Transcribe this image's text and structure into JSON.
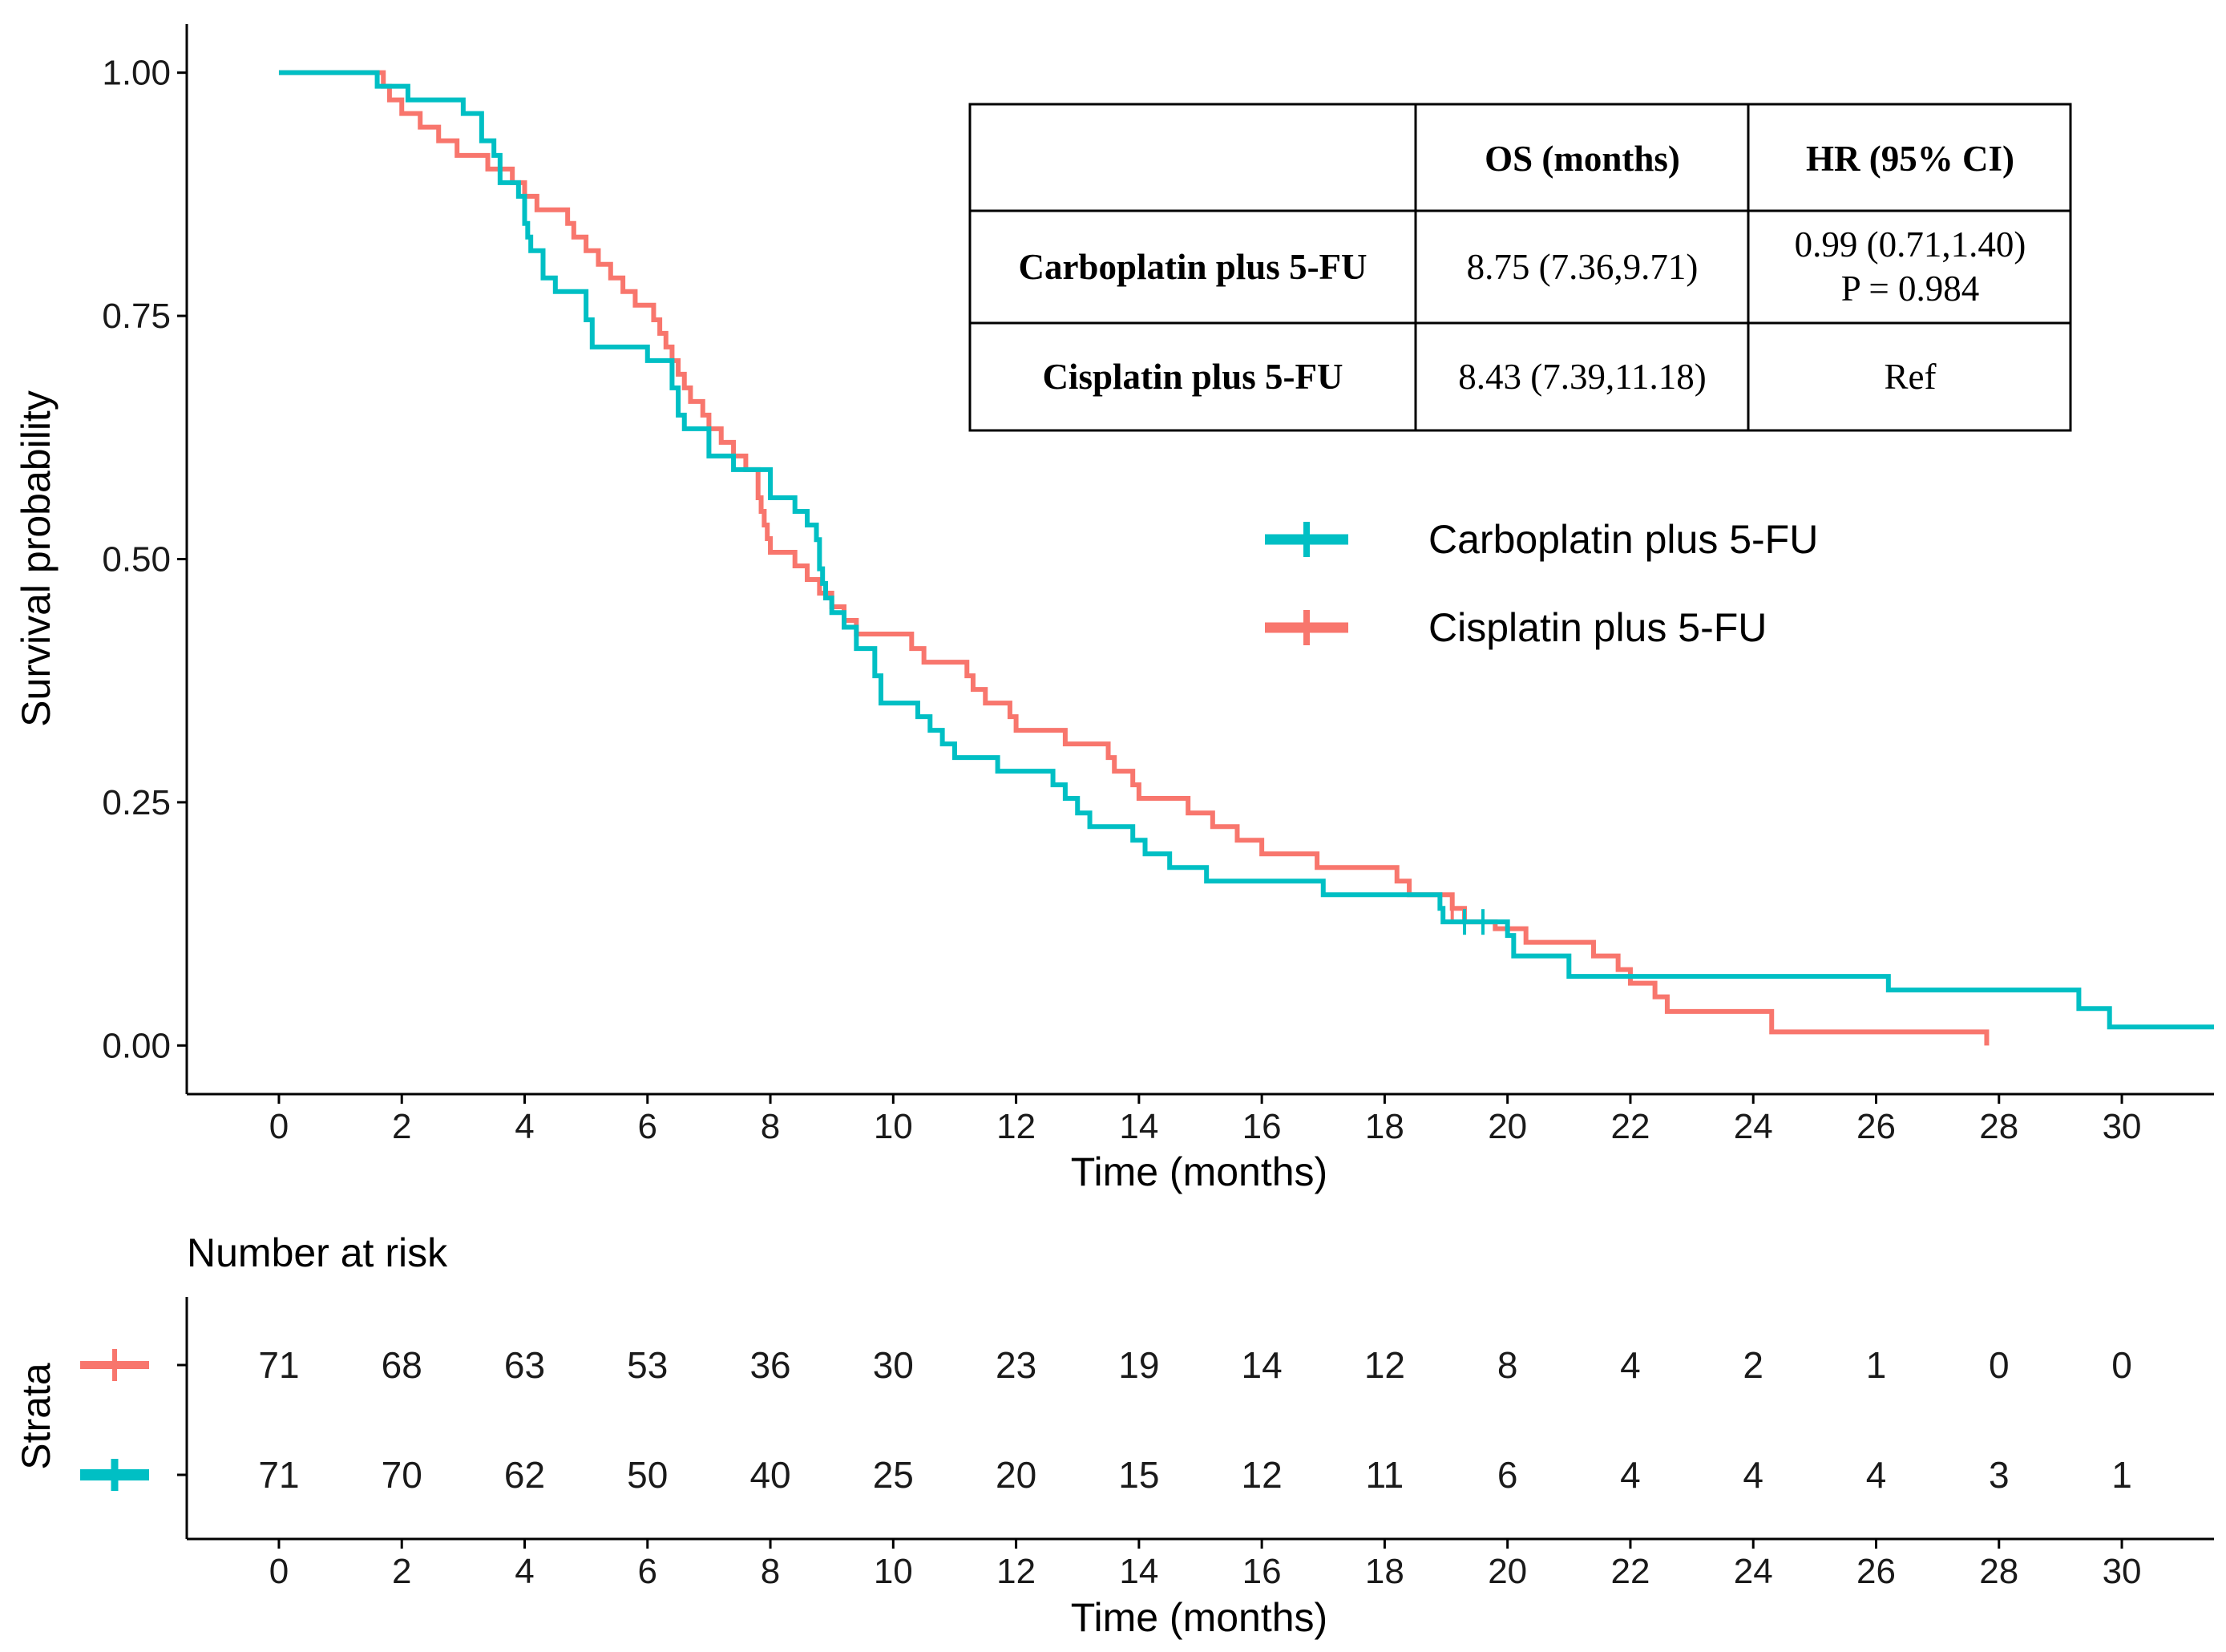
{
  "colors": {
    "carboplatin": "#00BFC4",
    "cisplatin": "#F8766D",
    "axis": "#000000"
  },
  "chart_data": {
    "type": "line",
    "subtype": "kaplan-meier",
    "xlabel": "Time (months)",
    "ylabel": "Survival probability",
    "xlim": [
      -1.5,
      31.5
    ],
    "ylim": [
      -0.05,
      1.05
    ],
    "x_ticks": [
      0,
      2,
      4,
      6,
      8,
      10,
      12,
      14,
      16,
      18,
      20,
      22,
      24,
      26,
      28,
      30
    ],
    "y_ticks": [
      0.0,
      0.25,
      0.5,
      0.75,
      1.0
    ],
    "y_tick_labels": [
      "0.00",
      "0.25",
      "0.50",
      "0.75",
      "1.00"
    ],
    "grid": false,
    "legend": {
      "position": "right-middle",
      "entries": [
        "Carboplatin plus 5-FU",
        "Cisplatin plus 5-FU"
      ]
    },
    "series": [
      {
        "name": "Carboplatin plus 5-FU",
        "color_key": "carboplatin",
        "steps": [
          [
            0,
            1.0
          ],
          [
            1.6,
            0.986
          ],
          [
            2.1,
            0.972
          ],
          [
            3.0,
            0.958
          ],
          [
            3.3,
            0.93
          ],
          [
            3.5,
            0.915
          ],
          [
            3.6,
            0.887
          ],
          [
            3.9,
            0.873
          ],
          [
            4.0,
            0.845
          ],
          [
            4.05,
            0.831
          ],
          [
            4.1,
            0.817
          ],
          [
            4.3,
            0.789
          ],
          [
            4.5,
            0.775
          ],
          [
            5.0,
            0.746
          ],
          [
            5.1,
            0.718
          ],
          [
            6.0,
            0.704
          ],
          [
            6.4,
            0.676
          ],
          [
            6.5,
            0.648
          ],
          [
            6.6,
            0.634
          ],
          [
            7.0,
            0.606
          ],
          [
            7.4,
            0.592
          ],
          [
            8.0,
            0.563
          ],
          [
            8.4,
            0.549
          ],
          [
            8.6,
            0.535
          ],
          [
            8.75,
            0.52
          ],
          [
            8.8,
            0.49
          ],
          [
            8.85,
            0.475
          ],
          [
            8.9,
            0.46
          ],
          [
            9.0,
            0.445
          ],
          [
            9.2,
            0.43
          ],
          [
            9.4,
            0.408
          ],
          [
            9.7,
            0.38
          ],
          [
            9.8,
            0.352
          ],
          [
            10.4,
            0.338
          ],
          [
            10.6,
            0.324
          ],
          [
            10.8,
            0.31
          ],
          [
            11.0,
            0.296
          ],
          [
            11.7,
            0.282
          ],
          [
            12.6,
            0.268
          ],
          [
            12.8,
            0.254
          ],
          [
            13.0,
            0.239
          ],
          [
            13.2,
            0.225
          ],
          [
            13.9,
            0.211
          ],
          [
            14.1,
            0.197
          ],
          [
            14.5,
            0.183
          ],
          [
            15.1,
            0.169
          ],
          [
            17.0,
            0.155
          ],
          [
            18.9,
            0.141
          ],
          [
            18.95,
            0.127
          ],
          [
            20.0,
            0.113
          ],
          [
            20.1,
            0.092
          ],
          [
            21.0,
            0.071
          ],
          [
            26.2,
            0.057
          ],
          [
            29.3,
            0.038
          ],
          [
            29.8,
            0.019
          ],
          [
            31.5,
            0.019
          ]
        ],
        "censor_times": [
          19.3,
          19.6
        ]
      },
      {
        "name": "Cisplatin plus 5-FU",
        "color_key": "cisplatin",
        "steps": [
          [
            0,
            1.0
          ],
          [
            1.7,
            0.986
          ],
          [
            1.8,
            0.972
          ],
          [
            2.0,
            0.958
          ],
          [
            2.3,
            0.944
          ],
          [
            2.6,
            0.93
          ],
          [
            2.9,
            0.915
          ],
          [
            3.4,
            0.901
          ],
          [
            3.8,
            0.887
          ],
          [
            4.0,
            0.873
          ],
          [
            4.2,
            0.859
          ],
          [
            4.7,
            0.845
          ],
          [
            4.8,
            0.831
          ],
          [
            5.0,
            0.817
          ],
          [
            5.2,
            0.803
          ],
          [
            5.4,
            0.789
          ],
          [
            5.6,
            0.775
          ],
          [
            5.8,
            0.761
          ],
          [
            6.1,
            0.746
          ],
          [
            6.2,
            0.732
          ],
          [
            6.3,
            0.718
          ],
          [
            6.4,
            0.704
          ],
          [
            6.5,
            0.69
          ],
          [
            6.6,
            0.676
          ],
          [
            6.7,
            0.662
          ],
          [
            6.9,
            0.648
          ],
          [
            7.0,
            0.634
          ],
          [
            7.2,
            0.62
          ],
          [
            7.4,
            0.606
          ],
          [
            7.6,
            0.592
          ],
          [
            7.8,
            0.563
          ],
          [
            7.85,
            0.549
          ],
          [
            7.9,
            0.535
          ],
          [
            7.95,
            0.521
          ],
          [
            8.0,
            0.507
          ],
          [
            8.4,
            0.493
          ],
          [
            8.6,
            0.479
          ],
          [
            8.8,
            0.465
          ],
          [
            9.0,
            0.451
          ],
          [
            9.2,
            0.437
          ],
          [
            9.4,
            0.423
          ],
          [
            10.3,
            0.408
          ],
          [
            10.5,
            0.394
          ],
          [
            11.2,
            0.38
          ],
          [
            11.3,
            0.366
          ],
          [
            11.5,
            0.352
          ],
          [
            11.9,
            0.338
          ],
          [
            12.0,
            0.324
          ],
          [
            12.8,
            0.31
          ],
          [
            13.5,
            0.296
          ],
          [
            13.6,
            0.282
          ],
          [
            13.9,
            0.268
          ],
          [
            14.0,
            0.254
          ],
          [
            14.8,
            0.239
          ],
          [
            15.2,
            0.225
          ],
          [
            15.6,
            0.211
          ],
          [
            16.0,
            0.197
          ],
          [
            16.9,
            0.183
          ],
          [
            18.2,
            0.169
          ],
          [
            18.4,
            0.155
          ],
          [
            19.1,
            0.141
          ],
          [
            19.3,
            0.127
          ],
          [
            19.8,
            0.12
          ],
          [
            20.3,
            0.106
          ],
          [
            21.4,
            0.092
          ],
          [
            21.8,
            0.078
          ],
          [
            22.0,
            0.064
          ],
          [
            22.4,
            0.05
          ],
          [
            22.6,
            0.035
          ],
          [
            24.3,
            0.014
          ],
          [
            27.8,
            0.0
          ]
        ],
        "censor_times": [
          19.1
        ]
      }
    ],
    "summary_table": {
      "headers": [
        "",
        "OS (months)",
        "HR (95% CI)"
      ],
      "rows": [
        {
          "label": "Carboplatin plus 5-FU",
          "os": "8.75 (7.36,9.71)",
          "hr_line1": "0.99 (0.71,1.40)",
          "hr_line2": "P = 0.984"
        },
        {
          "label": "Cisplatin plus 5-FU",
          "os": "8.43 (7.39,11.18)",
          "hr_line1": "Ref",
          "hr_line2": ""
        }
      ]
    },
    "risk_table": {
      "title": "Number at risk",
      "ylabel": "Strata",
      "xlabel": "Time (months)",
      "times": [
        0,
        2,
        4,
        6,
        8,
        10,
        12,
        14,
        16,
        18,
        20,
        22,
        24,
        26,
        28,
        30
      ],
      "rows": [
        {
          "name": "Cisplatin plus 5-FU",
          "color_key": "cisplatin",
          "counts": [
            71,
            68,
            63,
            53,
            36,
            30,
            23,
            19,
            14,
            12,
            8,
            4,
            2,
            1,
            0,
            0
          ]
        },
        {
          "name": "Carboplatin plus 5-FU",
          "color_key": "carboplatin",
          "counts": [
            71,
            70,
            62,
            50,
            40,
            25,
            20,
            15,
            12,
            11,
            6,
            4,
            4,
            4,
            3,
            1
          ]
        }
      ]
    }
  }
}
